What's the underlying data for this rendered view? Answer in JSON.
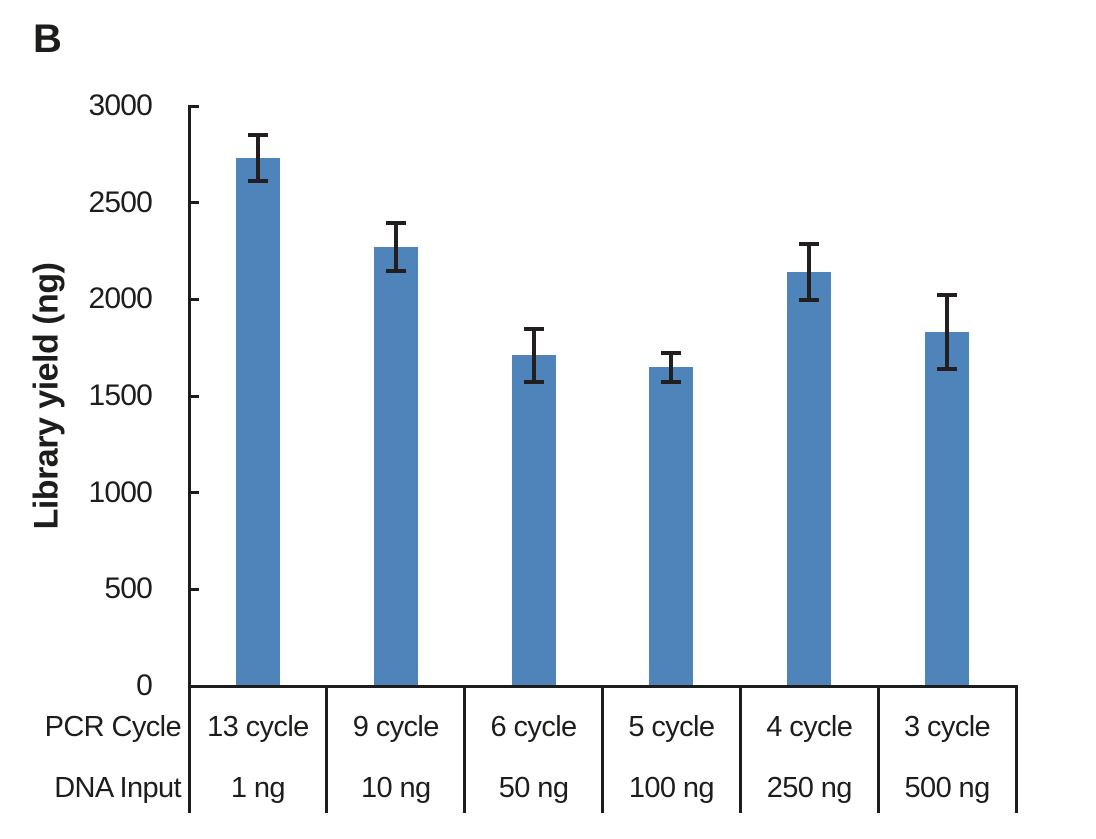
{
  "panel_label": "B",
  "chart_data": {
    "type": "bar",
    "title": "",
    "xlabel": "",
    "ylabel": "Library yield (ng)",
    "ylim": [
      0,
      3000
    ],
    "yticks": [
      0,
      500,
      1000,
      1500,
      2000,
      2500,
      3000
    ],
    "grid": false,
    "legend": false,
    "bar_color": "#4E84BA",
    "axis_color": "#1d1d1b",
    "error_bar_color": "#231F20",
    "category_rows": [
      {
        "label": "PCR Cycle",
        "values": [
          "13 cycle",
          "9 cycle",
          "6 cycle",
          "5 cycle",
          "4 cycle",
          "3 cycle"
        ]
      },
      {
        "label": "DNA Input",
        "values": [
          "1 ng",
          "10 ng",
          "50 ng",
          "100 ng",
          "250 ng",
          "500 ng"
        ]
      }
    ],
    "series": [
      {
        "name": "Library yield (ng)",
        "values": [
          2730,
          2270,
          1710,
          1650,
          2140,
          1830
        ],
        "errors": [
          120,
          125,
          135,
          75,
          145,
          190
        ]
      }
    ]
  }
}
